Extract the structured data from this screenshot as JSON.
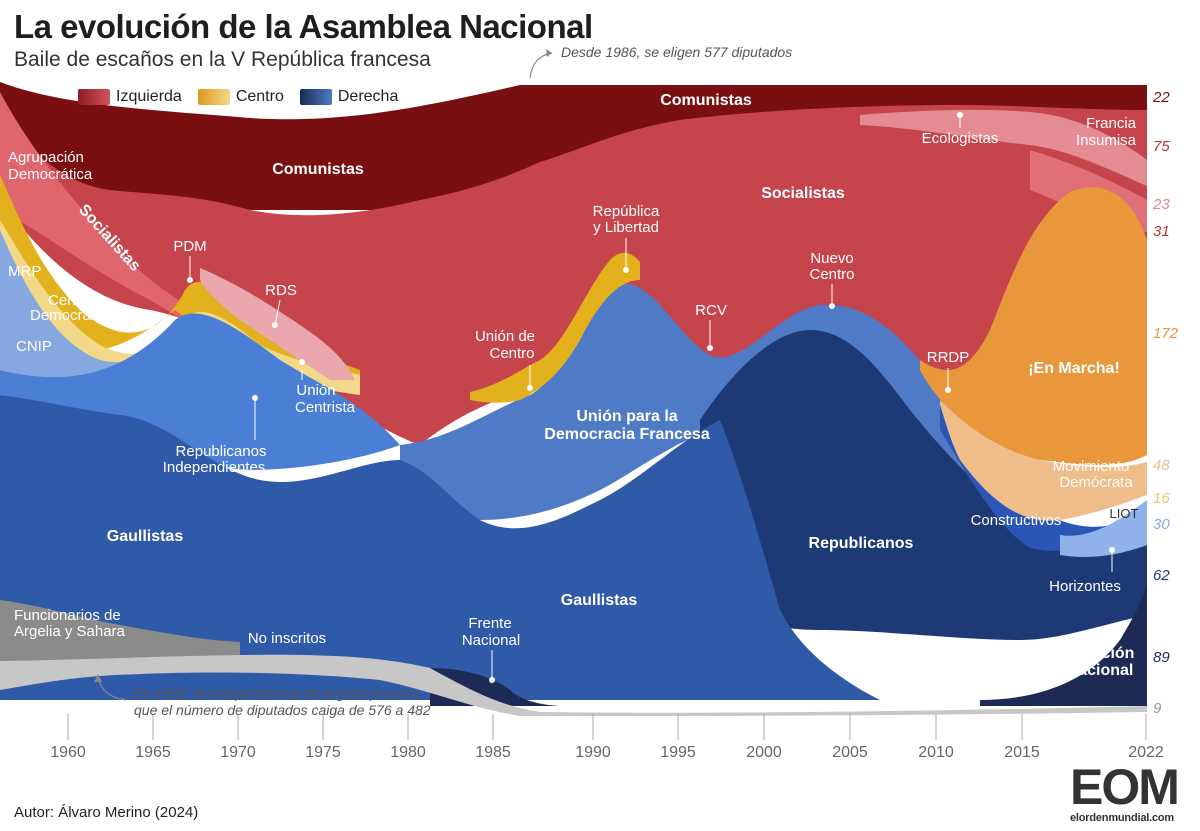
{
  "header": {
    "title": "La evolución de la Asamblea Nacional",
    "subtitle": "Baile de escaños en la V República francesa"
  },
  "notes": {
    "top": "Desde 1986, se eligen 577 diputados",
    "bottom_line1": "En 1962, la independencia de Argelia provoca",
    "bottom_line2": "que el número de diputados caiga de 576 a 482"
  },
  "legend": [
    {
      "label": "Izquierda",
      "color": "#b8323a"
    },
    {
      "label": "Centro",
      "color": "#e8b23a"
    },
    {
      "label": "Derecha",
      "color": "#2f5aa8"
    }
  ],
  "footer": {
    "author": "Autor: Álvaro Merino (2024)",
    "logo_mark": "EOM",
    "logo_text": "elordenmundial.com"
  },
  "chart_data": {
    "type": "area",
    "xlabel": "",
    "ylabel": "",
    "x_ticks": [
      "1960",
      "1965",
      "1970",
      "1975",
      "1980",
      "1985",
      "1990",
      "1995",
      "2000",
      "2005",
      "2010",
      "2015",
      "2022"
    ],
    "colors": {
      "comunistas": "#7a0f12",
      "socialistas": "#c6444b",
      "pink": "#e58b93",
      "lightpink": "#eaa7ad",
      "agrupacion_dem": "#e0666d",
      "yellow": "#e3b11d",
      "lightyellow": "#f2d98a",
      "orange": "#e8973a",
      "peach": "#eebd8a",
      "lightblue": "#86a8e0",
      "midblue": "#4b7fd6",
      "blue": "#3f6fc0",
      "gaullistas": "#2f5aa8",
      "republicanos": "#1e3a76",
      "navy": "#1c2a55",
      "gray": "#8b8b8b",
      "lightgray": "#c7c7c7"
    },
    "groups": [
      {
        "name": "Comunistas",
        "bloc": "Izquierda"
      },
      {
        "name": "Agrupación Democrática",
        "bloc": "Izquierda"
      },
      {
        "name": "Socialistas",
        "bloc": "Izquierda"
      },
      {
        "name": "Ecologistas",
        "bloc": "Izquierda"
      },
      {
        "name": "Francia Insumisa",
        "bloc": "Izquierda"
      },
      {
        "name": "PDM",
        "bloc": "Centro"
      },
      {
        "name": "RDS",
        "bloc": "Centro"
      },
      {
        "name": "MRP",
        "bloc": "Centro"
      },
      {
        "name": "Centro Democrático",
        "bloc": "Centro"
      },
      {
        "name": "Unión Centrista",
        "bloc": "Centro"
      },
      {
        "name": "Unión de Centro",
        "bloc": "Centro"
      },
      {
        "name": "República y Libertad",
        "bloc": "Centro"
      },
      {
        "name": "RCV",
        "bloc": "Izquierda"
      },
      {
        "name": "Nuevo Centro",
        "bloc": "Centro"
      },
      {
        "name": "RRDP",
        "bloc": "Centro"
      },
      {
        "name": "¡En Marcha!",
        "bloc": "Centro"
      },
      {
        "name": "Movimiento Demócrata",
        "bloc": "Centro"
      },
      {
        "name": "LIOT",
        "bloc": "Centro"
      },
      {
        "name": "CNIP",
        "bloc": "Derecha"
      },
      {
        "name": "Republicanos Independientes",
        "bloc": "Derecha"
      },
      {
        "name": "Unión para la Democracia Francesa",
        "bloc": "Derecha"
      },
      {
        "name": "Gaullistas",
        "bloc": "Derecha"
      },
      {
        "name": "Republicanos",
        "bloc": "Derecha"
      },
      {
        "name": "Constructivos",
        "bloc": "Derecha"
      },
      {
        "name": "Horizontes",
        "bloc": "Derecha"
      },
      {
        "name": "Frente Nacional",
        "bloc": "Derecha"
      },
      {
        "name": "Agrupación Nacional",
        "bloc": "Derecha"
      },
      {
        "name": "Funcionarios de Argelia y Sahara",
        "bloc": "Derecha"
      },
      {
        "name": "No inscritos",
        "bloc": "Otros"
      }
    ],
    "end_values_2022": [
      {
        "label": "22",
        "color": "#7a0f12"
      },
      {
        "label": "75",
        "color": "#b8323a"
      },
      {
        "label": "23",
        "color": "#d98790"
      },
      {
        "label": "31",
        "color": "#b8323a"
      },
      {
        "label": "172",
        "color": "#e8973a"
      },
      {
        "label": "48",
        "color": "#eebd8a"
      },
      {
        "label": "16",
        "color": "#e9c86a"
      },
      {
        "label": "30",
        "color": "#86a8e0"
      },
      {
        "label": "62",
        "color": "#1e3a76"
      },
      {
        "label": "89",
        "color": "#1c2a55"
      },
      {
        "label": "9",
        "color": "#999999"
      }
    ],
    "labels": {
      "comunistas_1": "Comunistas",
      "comunistas_2": "Comunistas",
      "agrupacion_1": "Agrupación",
      "agrupacion_2": "Democrática",
      "socialistas_diag": "Socialistas",
      "socialistas": "Socialistas",
      "ecologistas": "Ecologistas",
      "francia_1": "Francia",
      "francia_2": "Insumisa",
      "pdm": "PDM",
      "rds": "RDS",
      "mrp": "MRP",
      "centro_dem_1": "Centro",
      "centro_dem_2": "Democrático",
      "cnip": "CNIP",
      "union_centrista_1": "Unión",
      "union_centrista_2": "Centrista",
      "union_centro_1": "Unión de",
      "union_centro_2": "Centro",
      "rep_lib_1": "República",
      "rep_lib_2": "y Libertad",
      "rcv": "RCV",
      "nuevo_centro_1": "Nuevo",
      "nuevo_centro_2": "Centro",
      "rrdp": "RRDP",
      "en_marcha": "¡En Marcha!",
      "modem_1": "Movimiento",
      "modem_2": "Demócrata",
      "liot": "LIOT",
      "rep_indep_1": "Republicanos",
      "rep_indep_2": "Independientes",
      "udf_1": "Unión para la",
      "udf_2": "Democracia Francesa",
      "gaullistas_1": "Gaullistas",
      "gaullistas_2": "Gaullistas",
      "republicanos": "Republicanos",
      "constructivos": "Constructivos",
      "horizontes": "Horizontes",
      "funcionarios_1": "Funcionarios de",
      "funcionarios_2": "Argelia y Sahara",
      "no_inscritos": "No inscritos",
      "fn_1": "Frente",
      "fn_2": "Nacional",
      "rn_1": "Agrupación",
      "rn_2": "Nacional"
    }
  }
}
